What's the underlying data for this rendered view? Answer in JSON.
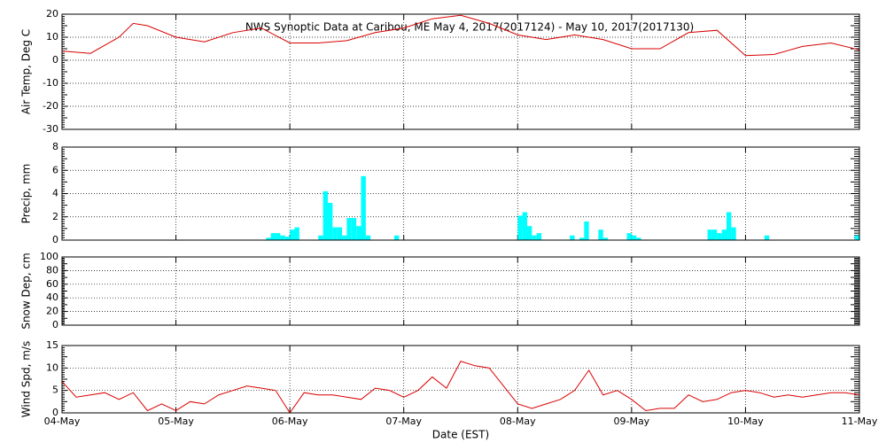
{
  "chart_data": [
    {
      "type": "line",
      "title": "NWS Synoptic Data at Caribou, ME   May  4, 2017(2017124) - May 10, 2017(2017130)",
      "ylabel": "Air Temp, Deg C",
      "xlim": [
        0,
        168
      ],
      "xticks": [
        0,
        24,
        48,
        72,
        96,
        120,
        144,
        168
      ],
      "ylim": [
        -30,
        20
      ],
      "yticks": [
        -30,
        -20,
        -10,
        0,
        10,
        20
      ],
      "grid": true,
      "series": [
        {
          "name": "Air Temp",
          "color": "#d80000",
          "x": [
            0,
            6,
            12,
            15,
            18,
            24,
            30,
            36,
            42,
            48,
            54,
            60,
            66,
            72,
            78,
            84,
            90,
            96,
            102,
            108,
            114,
            120,
            126,
            132,
            138,
            144,
            150,
            156,
            162,
            168
          ],
          "values": [
            4,
            3,
            10,
            16,
            15,
            10,
            8,
            12,
            14,
            7.5,
            7.5,
            8.5,
            12,
            14,
            18,
            19.5,
            16,
            11,
            9,
            11,
            9,
            5,
            5,
            12,
            13,
            2,
            2.5,
            6,
            7.5,
            4.5
          ]
        }
      ]
    },
    {
      "type": "bar",
      "ylabel": "Precip, mm",
      "xlim": [
        0,
        168
      ],
      "xticks": [
        0,
        24,
        48,
        72,
        96,
        120,
        144,
        168
      ],
      "ylim": [
        0,
        8
      ],
      "yticks": [
        0,
        2,
        4,
        6,
        8
      ],
      "grid": true,
      "series": [
        {
          "name": "Precip",
          "color": "#00ffff",
          "x": [
            43,
            44,
            45,
            46,
            47,
            48,
            49,
            54,
            55,
            56,
            57,
            58,
            59,
            60,
            61,
            62,
            63,
            64,
            70,
            96,
            97,
            98,
            99,
            100,
            107,
            109,
            110,
            113,
            114,
            119,
            120,
            121,
            136,
            137,
            138,
            139,
            140,
            141,
            148,
            167
          ],
          "values": [
            0.2,
            0.6,
            0.6,
            0.4,
            0.3,
            0.9,
            1.1,
            0.4,
            4.2,
            3.2,
            1.1,
            1.1,
            0.4,
            1.9,
            1.9,
            1.2,
            5.5,
            0.4,
            0.4,
            2.1,
            2.4,
            1.2,
            0.4,
            0.6,
            0.4,
            0.2,
            1.6,
            0.9,
            0.2,
            0.6,
            0.4,
            0.2,
            0.9,
            0.9,
            0.6,
            0.9,
            2.4,
            1.1,
            0.4,
            0.4
          ]
        }
      ]
    },
    {
      "type": "line",
      "ylabel": "Snow Dep, cm",
      "xlim": [
        0,
        168
      ],
      "xticks": [
        0,
        24,
        48,
        72,
        96,
        120,
        144,
        168
      ],
      "ylim": [
        0,
        100
      ],
      "yticks": [
        0,
        20,
        40,
        60,
        80,
        100
      ],
      "grid": true,
      "series": []
    },
    {
      "type": "line",
      "ylabel": "Wind Spd, m/s",
      "xlabel": "Date (EST)",
      "xlim": [
        0,
        168
      ],
      "xticks": [
        {
          "value": 0,
          "label": "04-May"
        },
        {
          "value": 24,
          "label": "05-May"
        },
        {
          "value": 48,
          "label": "06-May"
        },
        {
          "value": 72,
          "label": "07-May"
        },
        {
          "value": 96,
          "label": "08-May"
        },
        {
          "value": 120,
          "label": "09-May"
        },
        {
          "value": 144,
          "label": "10-May"
        },
        {
          "value": 168,
          "label": "11-May"
        }
      ],
      "ylim": [
        0,
        15
      ],
      "yticks": [
        0,
        5,
        10,
        15
      ],
      "grid": true,
      "series": [
        {
          "name": "Wind Spd",
          "color": "#d80000",
          "x": [
            0,
            3,
            6,
            9,
            12,
            15,
            18,
            21,
            24,
            27,
            30,
            33,
            36,
            39,
            42,
            45,
            48,
            51,
            54,
            57,
            60,
            63,
            66,
            69,
            72,
            75,
            78,
            81,
            84,
            87,
            90,
            93,
            96,
            99,
            102,
            105,
            108,
            111,
            114,
            117,
            120,
            123,
            126,
            129,
            132,
            135,
            138,
            141,
            144,
            147,
            150,
            153,
            156,
            159,
            162,
            165,
            168
          ],
          "values": [
            7,
            3.5,
            4,
            4.5,
            3,
            4.5,
            0.5,
            2,
            0.5,
            2.5,
            2,
            4,
            5,
            6,
            5.5,
            5,
            0,
            4.5,
            4,
            4,
            3.5,
            3,
            5.5,
            5,
            3.5,
            5,
            8,
            5.5,
            11.5,
            10.5,
            10,
            6,
            2,
            1,
            2,
            3,
            5,
            9.5,
            4,
            5,
            3,
            0.5,
            1,
            1,
            4,
            2.5,
            3,
            4.5,
            5,
            4.5,
            3.5,
            4,
            3.5,
            4,
            4.5,
            4.5,
            4
          ]
        }
      ]
    }
  ]
}
